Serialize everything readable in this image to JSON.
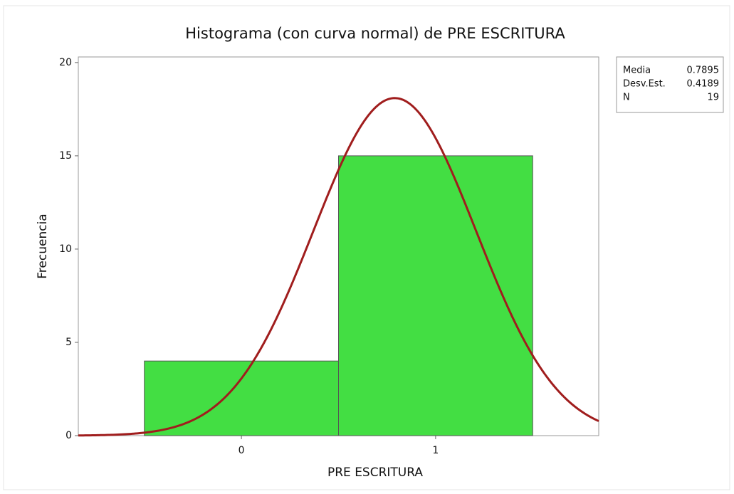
{
  "chart_data": {
    "type": "histogram",
    "title": "Histograma (con curva normal) de PRE ESCRITURA",
    "xlabel": "PRE ESCRITURA",
    "ylabel": "Frecuencia",
    "bins": [
      -0.5,
      0.5,
      1.5
    ],
    "values": [
      4,
      15
    ],
    "color": "#43de43",
    "curve_color": "#a01d1d",
    "stats": [
      {
        "label": "Media",
        "value": 0.7895
      },
      {
        "label": "Desv.Est.",
        "value": 0.4189
      },
      {
        "label": "N",
        "value": 19
      }
    ],
    "xlim": [
      -0.84,
      1.84
    ],
    "xticks": [
      0,
      1
    ],
    "ylim": [
      0,
      20.3
    ],
    "yticks": [
      0,
      5,
      10,
      15,
      20
    ]
  }
}
